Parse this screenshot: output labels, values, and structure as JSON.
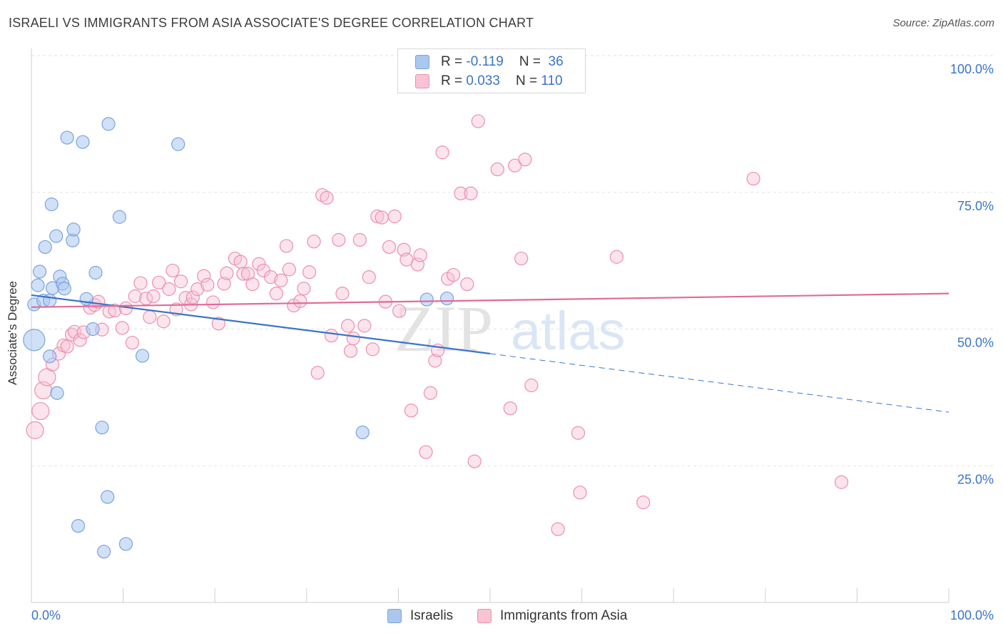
{
  "title": "ISRAELI VS IMMIGRANTS FROM ASIA ASSOCIATE'S DEGREE CORRELATION CHART",
  "source": "Source: ZipAtlas.com",
  "watermark": {
    "zip": "ZIP",
    "atlas": "atlas"
  },
  "legend": {
    "rows": [
      {
        "r_label": "R =",
        "r_value": "-0.119",
        "n_label": "N =",
        "n_value": "36",
        "color": "#aac7f0",
        "border": "#7aa3de"
      },
      {
        "r_label": "R =",
        "r_value": "0.033",
        "n_label": "N =",
        "n_value": "110",
        "color": "#f9c3d4",
        "border": "#ea90ad"
      }
    ]
  },
  "bottom_legend": {
    "israelis": "Israelis",
    "asia": "Immigrants from Asia"
  },
  "chart_data": {
    "type": "scatter",
    "title": "ISRAELI VS IMMIGRANTS FROM ASIA ASSOCIATE'S DEGREE CORRELATION CHART",
    "xlabel": "",
    "ylabel": "Associate's Degree",
    "xlim": [
      0,
      100
    ],
    "ylim": [
      0,
      100
    ],
    "x_tick_labels": [
      "0.0%",
      "100.0%"
    ],
    "y_tick_labels": [
      "25.0%",
      "50.0%",
      "75.0%",
      "100.0%"
    ],
    "y_ticks": [
      25,
      50,
      75,
      100
    ],
    "grid": true,
    "colors": {
      "israelis": "#3a74c9",
      "asia": "#e06b98"
    },
    "series": [
      {
        "name": "Israelis",
        "points": [
          [
            0.3,
            48,
            30
          ],
          [
            0.3,
            54.5,
            18
          ],
          [
            0.7,
            58,
            18
          ],
          [
            0.9,
            60.5,
            18
          ],
          [
            1.3,
            55.2,
            18
          ],
          [
            1.5,
            65,
            18
          ],
          [
            2,
            55.2,
            18
          ],
          [
            2,
            45,
            18
          ],
          [
            2.2,
            72.8,
            18
          ],
          [
            2.3,
            57.5,
            18
          ],
          [
            2.7,
            67,
            18
          ],
          [
            2.8,
            38.3,
            18
          ],
          [
            3.1,
            59.6,
            18
          ],
          [
            3.4,
            58.3,
            18
          ],
          [
            3.6,
            57.4,
            18
          ],
          [
            3.9,
            85,
            18
          ],
          [
            4.5,
            66.2,
            18
          ],
          [
            4.6,
            68.2,
            18
          ],
          [
            5.1,
            14,
            18
          ],
          [
            5.6,
            84.2,
            18
          ],
          [
            6,
            55.5,
            18
          ],
          [
            6.7,
            50,
            18
          ],
          [
            7,
            60.3,
            18
          ],
          [
            7.7,
            32,
            18
          ],
          [
            7.9,
            9.3,
            18
          ],
          [
            8.3,
            19.3,
            18
          ],
          [
            8.4,
            87.5,
            18
          ],
          [
            9.6,
            70.5,
            18
          ],
          [
            10.3,
            10.7,
            18
          ],
          [
            12.1,
            45.1,
            18
          ],
          [
            16,
            83.8,
            18
          ],
          [
            36.1,
            31.1,
            18
          ],
          [
            43.1,
            55.4,
            18
          ],
          [
            45.3,
            55.6,
            18
          ]
        ],
        "trend_solid": [
          [
            0,
            56.2
          ],
          [
            50,
            45.5
          ]
        ],
        "trend_dashed": [
          [
            50,
            45.5
          ],
          [
            100,
            34.8
          ]
        ]
      },
      {
        "name": "Immigrants from Asia",
        "points": [
          [
            0.4,
            31.5,
            24
          ],
          [
            1,
            35,
            24
          ],
          [
            1.3,
            38.8,
            24
          ],
          [
            1.7,
            41.2,
            24
          ],
          [
            2.3,
            43.5,
            18
          ],
          [
            3,
            45.5,
            18
          ],
          [
            3.5,
            47,
            18
          ],
          [
            3.9,
            46.8,
            18
          ],
          [
            4.4,
            49,
            18
          ],
          [
            4.7,
            49.5,
            18
          ],
          [
            5.3,
            48,
            18
          ],
          [
            5.7,
            49.4,
            18
          ],
          [
            6.4,
            53.9,
            18
          ],
          [
            6.9,
            54.4,
            18
          ],
          [
            7.3,
            55,
            18
          ],
          [
            7.7,
            49.9,
            18
          ],
          [
            8.5,
            53.2,
            18
          ],
          [
            9.1,
            53.4,
            18
          ],
          [
            9.9,
            50.2,
            18
          ],
          [
            10.3,
            53.8,
            18
          ],
          [
            11,
            47.5,
            18
          ],
          [
            11.3,
            56,
            18
          ],
          [
            11.9,
            58.4,
            18
          ],
          [
            12.5,
            55.6,
            18
          ],
          [
            12.9,
            52.2,
            18
          ],
          [
            13.3,
            56,
            18
          ],
          [
            13.9,
            58.5,
            18
          ],
          [
            14.4,
            51.4,
            18
          ],
          [
            15,
            57.3,
            18
          ],
          [
            15.4,
            60.7,
            18
          ],
          [
            15.8,
            53.6,
            18
          ],
          [
            16.3,
            58.7,
            18
          ],
          [
            16.8,
            55.7,
            18
          ],
          [
            17.4,
            54.5,
            18
          ],
          [
            17.6,
            55.8,
            18
          ],
          [
            18.1,
            57.3,
            18
          ],
          [
            18.8,
            59.7,
            18
          ],
          [
            19.2,
            58.1,
            18
          ],
          [
            19.8,
            54.9,
            18
          ],
          [
            20.4,
            51,
            18
          ],
          [
            21,
            58.3,
            18
          ],
          [
            21.3,
            60.2,
            18
          ],
          [
            22.2,
            62.9,
            18
          ],
          [
            22.8,
            62.3,
            18
          ],
          [
            23.1,
            60.1,
            18
          ],
          [
            23.6,
            60.1,
            18
          ],
          [
            24.1,
            58.2,
            18
          ],
          [
            24.8,
            61.9,
            18
          ],
          [
            25.3,
            60.7,
            18
          ],
          [
            26.1,
            59.5,
            18
          ],
          [
            26.7,
            56.5,
            18
          ],
          [
            27.2,
            58.9,
            18
          ],
          [
            27.8,
            65.2,
            18
          ],
          [
            28.1,
            60.9,
            18
          ],
          [
            28.6,
            54.3,
            18
          ],
          [
            29.3,
            55.1,
            18
          ],
          [
            29.7,
            57.4,
            18
          ],
          [
            30.3,
            60.4,
            18
          ],
          [
            30.8,
            66,
            18
          ],
          [
            31.2,
            42,
            18
          ],
          [
            31.7,
            74.5,
            18
          ],
          [
            32.2,
            74,
            18
          ],
          [
            32.7,
            48.8,
            18
          ],
          [
            33.5,
            66.3,
            18
          ],
          [
            33.9,
            56.5,
            18
          ],
          [
            34.5,
            50.6,
            18
          ],
          [
            34.8,
            46,
            18
          ],
          [
            35.1,
            48.3,
            18
          ],
          [
            35.8,
            66.3,
            18
          ],
          [
            36.3,
            50.6,
            18
          ],
          [
            36.8,
            59.5,
            18
          ],
          [
            37.2,
            46.3,
            18
          ],
          [
            37.7,
            70.6,
            18
          ],
          [
            38.2,
            70.4,
            18
          ],
          [
            38.6,
            55,
            18
          ],
          [
            39,
            65,
            18
          ],
          [
            39.6,
            70.6,
            18
          ],
          [
            40.1,
            53.3,
            18
          ],
          [
            40.6,
            64.5,
            18
          ],
          [
            40.9,
            62.7,
            18
          ],
          [
            41.4,
            35.1,
            18
          ],
          [
            42.1,
            61.8,
            18
          ],
          [
            42.4,
            63.5,
            18
          ],
          [
            43,
            27.5,
            18
          ],
          [
            43.5,
            38.3,
            18
          ],
          [
            44,
            44.2,
            18
          ],
          [
            44.3,
            46.1,
            18
          ],
          [
            44.8,
            82.3,
            18
          ],
          [
            45.4,
            59.2,
            18
          ],
          [
            46,
            59.9,
            18
          ],
          [
            46.8,
            74.8,
            18
          ],
          [
            47.5,
            58.2,
            18
          ],
          [
            47.9,
            74.8,
            18
          ],
          [
            48.3,
            25.8,
            18
          ],
          [
            48.7,
            88,
            18
          ],
          [
            50.8,
            79.2,
            18
          ],
          [
            52.2,
            35.5,
            18
          ],
          [
            52.7,
            79.9,
            18
          ],
          [
            53.4,
            62.9,
            18
          ],
          [
            53.8,
            81,
            18
          ],
          [
            54.5,
            39.7,
            18
          ],
          [
            57.4,
            13.4,
            18
          ],
          [
            59.6,
            31,
            18
          ],
          [
            59.8,
            20.1,
            18
          ],
          [
            63.8,
            63.2,
            18
          ],
          [
            66.7,
            18.3,
            18
          ],
          [
            78.7,
            77.5,
            18
          ],
          [
            88.3,
            22,
            18
          ]
        ],
        "trend_solid": [
          [
            0,
            54
          ],
          [
            100,
            56.5
          ]
        ]
      }
    ]
  }
}
